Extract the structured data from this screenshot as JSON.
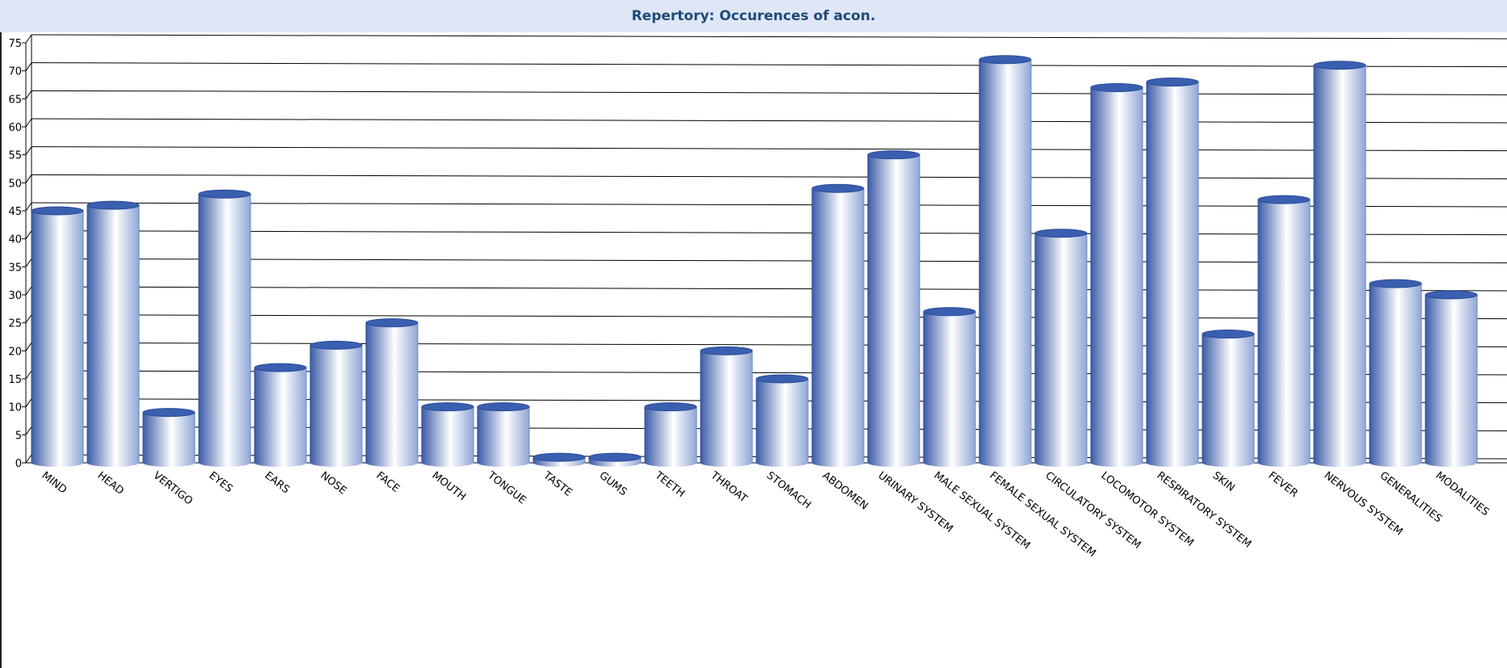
{
  "window": {
    "title": "Repertory: Occurences of acon."
  },
  "colors": {
    "bar_dark": "#3b5ca8",
    "bar_light": "#ffffff",
    "bar_top": "#3a5fb0",
    "header_bg": "#dfe6f6",
    "title_color": "#1f4a78"
  },
  "chart_data": {
    "type": "bar",
    "title": "Repertory: Occurences of acon.",
    "xlabel": "",
    "ylabel": "",
    "ylim": [
      0,
      75
    ],
    "yticks": [
      0,
      5,
      10,
      15,
      20,
      25,
      30,
      35,
      40,
      45,
      50,
      55,
      60,
      65,
      70,
      75
    ],
    "grid": true,
    "categories": [
      "MIND",
      "HEAD",
      "VERTIGO",
      "EYES",
      "EARS",
      "NOSE",
      "FACE",
      "MOUTH",
      "TONGUE",
      "TASTE",
      "GUMS",
      "TEETH",
      "THROAT",
      "STOMACH",
      "ABDOMEN",
      "URINARY SYSTEM",
      "MALE SEXUAL SYSTEM",
      "FEMALE SEXUAL SYSTEM",
      "CIRCULATORY SYSTEM",
      "LOCOMOTOR SYSTEM",
      "RESPIRATORY SYSTEM",
      "SKIN",
      "FEVER",
      "NERVOUS SYSTEM",
      "GENERALITIES",
      "MODALITIES"
    ],
    "values": [
      45,
      46,
      9,
      48,
      17,
      21,
      25,
      10,
      10,
      1,
      1,
      10,
      20,
      15,
      49,
      55,
      27,
      72,
      41,
      67,
      68,
      23,
      47,
      71,
      32,
      30
    ]
  }
}
